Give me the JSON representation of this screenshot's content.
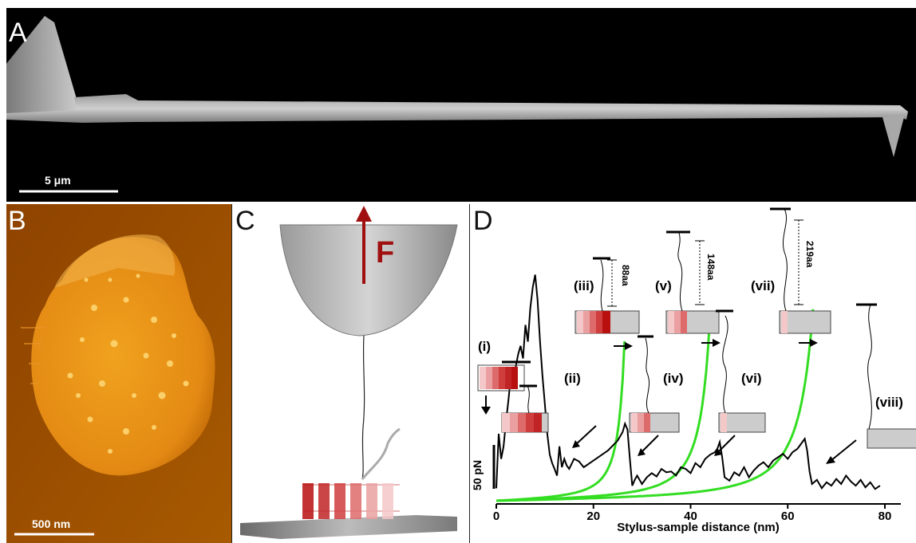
{
  "figure": {
    "panels": {
      "A": {
        "label": "A",
        "scale_bar": "5 μm"
      },
      "B": {
        "label": "B",
        "scale_bar": "500 nm"
      },
      "C": {
        "label": "C",
        "force_label": "F"
      },
      "D": {
        "label": "D"
      }
    }
  },
  "colors": {
    "force_arrow": "#a01010",
    "wlc_fit": "#33dd22",
    "trace": "#000000",
    "helix_dark": "#b80f0f",
    "helix_light": "#f4c8c8"
  },
  "chart_data": {
    "type": "line",
    "xlabel": "Stylus-sample distance (nm)",
    "ylabel": "",
    "xlim": [
      0,
      80
    ],
    "x_ticks": [
      "0",
      "20",
      "40",
      "60",
      "80"
    ],
    "force_scale_bar": "50 pN",
    "series": [
      {
        "x": [
          0,
          0.5,
          1,
          1.5,
          2,
          2.5,
          3,
          3.5,
          4,
          4.5,
          5,
          5.5,
          6,
          6.5,
          7,
          7.5,
          8,
          8.5,
          9,
          9.5,
          10,
          10.5,
          11,
          11.5,
          12,
          12.5,
          13,
          13.5,
          14,
          14.5,
          15,
          15.5,
          16,
          17,
          18,
          19,
          20,
          21,
          22,
          23,
          24,
          25,
          26,
          26.5,
          27,
          27.5,
          28,
          28.5,
          29,
          30,
          31,
          32,
          33,
          34,
          35,
          36,
          37,
          38,
          39,
          40,
          41,
          42,
          43,
          44,
          45,
          45.5,
          46,
          46.5,
          47,
          48,
          49,
          50,
          51,
          52,
          53,
          54,
          55,
          56,
          57,
          58,
          59,
          60,
          61,
          62,
          63,
          63.5,
          64,
          64.5,
          65,
          66,
          67,
          68,
          69,
          70,
          71,
          72,
          73,
          74,
          75,
          76,
          77,
          78,
          79
        ],
        "y": [
          15,
          80,
          50,
          65,
          95,
          120,
          150,
          135,
          160,
          175,
          185,
          170,
          210,
          190,
          230,
          255,
          270,
          240,
          190,
          150,
          115,
          80,
          55,
          45,
          38,
          30,
          65,
          40,
          50,
          42,
          38,
          44,
          50,
          47,
          40,
          44,
          48,
          52,
          56,
          60,
          66,
          72,
          82,
          92,
          85,
          50,
          18,
          25,
          30,
          20,
          28,
          33,
          29,
          38,
          34,
          35,
          30,
          40,
          38,
          33,
          45,
          40,
          50,
          55,
          58,
          62,
          70,
          52,
          28,
          24,
          34,
          30,
          40,
          28,
          36,
          42,
          46,
          40,
          48,
          52,
          56,
          50,
          58,
          62,
          70,
          74,
          60,
          35,
          20,
          25,
          15,
          22,
          18,
          26,
          20,
          30,
          23,
          18,
          25,
          16,
          22,
          14,
          18
        ]
      }
    ],
    "annotations": {
      "states": [
        "(i)",
        "(ii)",
        "(iii)",
        "(iv)",
        "(v)",
        "(vi)",
        "(vii)",
        "(viii)"
      ],
      "lengths": [
        "88aa",
        "148aa",
        "219aa"
      ]
    }
  }
}
